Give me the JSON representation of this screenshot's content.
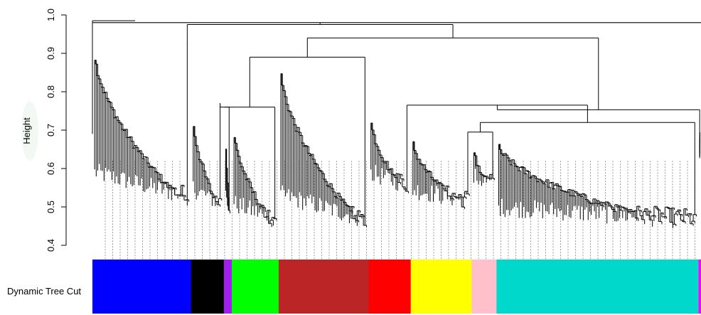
{
  "chart_data": {
    "type": "dendrogram",
    "ylabel": "Height",
    "ylim": [
      0.4,
      1.0
    ],
    "yticks": [
      {
        "value": 0.4,
        "label": "0.4"
      },
      {
        "value": 0.5,
        "label": "0.5"
      },
      {
        "value": 0.6,
        "label": "0.6"
      },
      {
        "value": 0.7,
        "label": "0.7"
      },
      {
        "value": 0.8,
        "label": "0.8"
      },
      {
        "value": 0.9,
        "label": "0.9"
      },
      {
        "value": 1.0,
        "label": "1.0"
      }
    ],
    "top_merge_heights": [
      0.985,
      0.98,
      0.975,
      0.94,
      0.89,
      0.765,
      0.76,
      0.75
    ],
    "clusters": [
      {
        "module": "blue",
        "color": "#0000FF",
        "span": [
          0.0,
          0.162
        ],
        "merge_height": 0.935,
        "leaf_height": 0.5
      },
      {
        "module": "black",
        "color": "#000000",
        "span": [
          0.162,
          0.216
        ],
        "merge_height": 0.77,
        "leaf_height": 0.48
      },
      {
        "module": "purple",
        "color": "#A020F0",
        "span": [
          0.216,
          0.229
        ],
        "merge_height": 0.75,
        "leaf_height": 0.47
      },
      {
        "module": "green",
        "color": "#00FF00",
        "span": [
          0.229,
          0.306
        ],
        "merge_height": 0.73,
        "leaf_height": 0.44
      },
      {
        "module": "brown",
        "color": "#BB2525",
        "span": [
          0.306,
          0.454
        ],
        "merge_height": 0.89,
        "leaf_height": 0.44
      },
      {
        "module": "red",
        "color": "#FF0000",
        "span": [
          0.454,
          0.523
        ],
        "merge_height": 0.755,
        "leaf_height": 0.53
      },
      {
        "module": "yellow",
        "color": "#FFFF00",
        "span": [
          0.523,
          0.623
        ],
        "merge_height": 0.69,
        "leaf_height": 0.49
      },
      {
        "module": "pink",
        "color": "#FFC0CB",
        "span": [
          0.623,
          0.664
        ],
        "merge_height": 0.68,
        "leaf_height": 0.53
      },
      {
        "module": "turquoise",
        "color": "#00D8CC",
        "span": [
          0.664,
          0.996
        ],
        "merge_height": 0.67,
        "leaf_height": 0.44
      },
      {
        "module": "magenta",
        "color": "#FF00FF",
        "span": [
          0.996,
          1.0
        ],
        "merge_height": 0.745,
        "leaf_height": 0.62
      }
    ],
    "color_row_label": "Dynamic Tree Cut",
    "grid": false,
    "legend": "none"
  }
}
